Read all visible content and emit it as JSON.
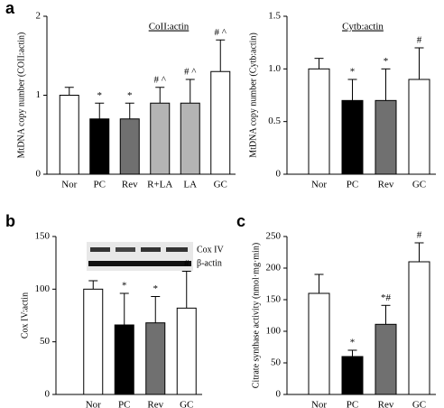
{
  "chart_data": [
    {
      "type": "bar",
      "panel_label": "a",
      "title": "CoII:actin",
      "y_label": "MtDNA copy number (COII:actin)",
      "categories": [
        "Nor",
        "PC",
        "Rev",
        "R+LA",
        "LA",
        "GC"
      ],
      "values": [
        1.0,
        0.7,
        0.7,
        0.9,
        0.9,
        1.3
      ],
      "errors": [
        0.1,
        0.2,
        0.2,
        0.2,
        0.3,
        0.4
      ],
      "colors": [
        "#ffffff",
        "#000000",
        "#707070",
        "#b4b4b4",
        "#b4b4b4",
        "#ffffff"
      ],
      "annotations": [
        null,
        "*",
        "*",
        "# ^",
        "# ^",
        "# ^"
      ],
      "ylim": [
        0,
        2
      ],
      "yticks": [
        0,
        1,
        2
      ]
    },
    {
      "type": "bar",
      "title": "Cytb:actin",
      "y_label": "MtDNA copy number (Cytb:actin)",
      "categories": [
        "Nor",
        "PC",
        "Rev",
        "GC"
      ],
      "values": [
        1.0,
        0.7,
        0.7,
        0.9
      ],
      "errors": [
        0.1,
        0.2,
        0.3,
        0.3
      ],
      "colors": [
        "#ffffff",
        "#000000",
        "#707070",
        "#ffffff"
      ],
      "annotations": [
        null,
        "*",
        "*",
        "#"
      ],
      "ylim": [
        0,
        1.5
      ],
      "yticks": [
        0,
        0.5,
        {
          "value": 1,
          "label": "1.0"
        },
        1.5
      ]
    },
    {
      "type": "bar",
      "panel_label": "b",
      "y_label": "Cox IV:actin",
      "inset_labels": [
        "Cox IV",
        "β-actin"
      ],
      "categories": [
        "Nor",
        "PC",
        "Rev",
        "GC"
      ],
      "values": [
        100,
        66,
        68,
        82
      ],
      "errors": [
        8,
        30,
        25,
        35
      ],
      "colors": [
        "#ffffff",
        "#000000",
        "#707070",
        "#ffffff"
      ],
      "annotations": [
        null,
        "*",
        "*",
        "#"
      ],
      "ylim": [
        0,
        150
      ],
      "yticks": [
        0,
        50,
        100,
        150
      ]
    },
    {
      "type": "bar",
      "panel_label": "c",
      "y_label": "Citrate synthase activity (nmol·mg·min)",
      "categories": [
        "Nor",
        "PC",
        "Rev",
        "GC"
      ],
      "values": [
        160,
        60,
        111,
        210
      ],
      "errors": [
        30,
        10,
        30,
        30
      ],
      "colors": [
        "#ffffff",
        "#000000",
        "#707070",
        "#ffffff"
      ],
      "annotations": [
        null,
        "*",
        "*#",
        "#"
      ],
      "ylim": [
        0,
        250
      ],
      "yticks": [
        0,
        50,
        100,
        150,
        200,
        250
      ]
    }
  ]
}
